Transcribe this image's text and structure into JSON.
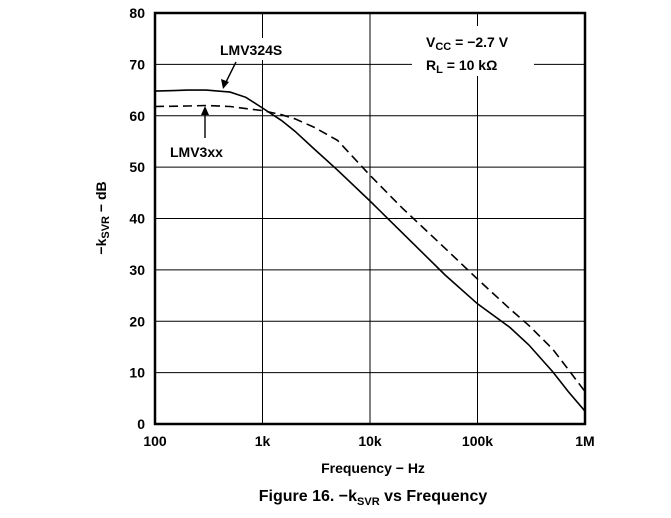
{
  "chart_data": {
    "type": "line",
    "title": "Figure 16. −k",
    "title_sub": "SVR",
    "title_suffix": " vs Frequency",
    "xlabel": "Frequency − Hz",
    "ylabel_prefix": "−k",
    "ylabel_sub": "SVR",
    "ylabel_suffix": " − dB",
    "x_scale": "log",
    "xlim": [
      100,
      1000000
    ],
    "ylim": [
      0,
      80
    ],
    "x_ticks": [
      100,
      1000,
      10000,
      100000,
      1000000
    ],
    "x_tick_labels": [
      "100",
      "1k",
      "10k",
      "100k",
      "1M"
    ],
    "y_ticks": [
      0,
      10,
      20,
      30,
      40,
      50,
      60,
      70,
      80
    ],
    "y_tick_labels": [
      "0",
      "10",
      "20",
      "30",
      "40",
      "50",
      "60",
      "70",
      "80"
    ],
    "grid": true,
    "conditions": [
      {
        "main": "V",
        "sub": "CC",
        "rest": " = −2.7 V"
      },
      {
        "main": "R",
        "sub": "L",
        "rest": " = 10 kΩ"
      }
    ],
    "series": [
      {
        "name": "LMV324S",
        "style": "solid",
        "color": "#000000",
        "x": [
          100,
          150,
          200,
          300,
          500,
          700,
          1000,
          1500,
          2000,
          3000,
          5000,
          10000,
          20000,
          50000,
          100000,
          200000,
          300000,
          500000,
          700000,
          1000000
        ],
        "y": [
          64.8,
          64.9,
          65.0,
          65.0,
          64.6,
          63.6,
          61.5,
          59.1,
          57.0,
          53.6,
          49.4,
          43.4,
          37.2,
          29.0,
          23.4,
          18.8,
          15.4,
          10.2,
          6.3,
          2.5
        ]
      },
      {
        "name": "LMV3xx",
        "style": "dashed",
        "color": "#000000",
        "x": [
          100,
          200,
          300,
          500,
          700,
          1000,
          1500,
          2000,
          3000,
          5000,
          10000,
          20000,
          50000,
          100000,
          200000,
          300000,
          500000,
          700000,
          1000000
        ],
        "y": [
          61.8,
          61.9,
          62.0,
          61.8,
          61.4,
          61.0,
          60.2,
          59.4,
          57.8,
          55.2,
          48.4,
          42.0,
          34.2,
          28.2,
          22.4,
          19.2,
          14.6,
          10.6,
          6.3
        ]
      }
    ],
    "annotations": [
      {
        "text": "LMV324S",
        "series": 0
      },
      {
        "text": "LMV3xx",
        "series": 1
      }
    ]
  }
}
